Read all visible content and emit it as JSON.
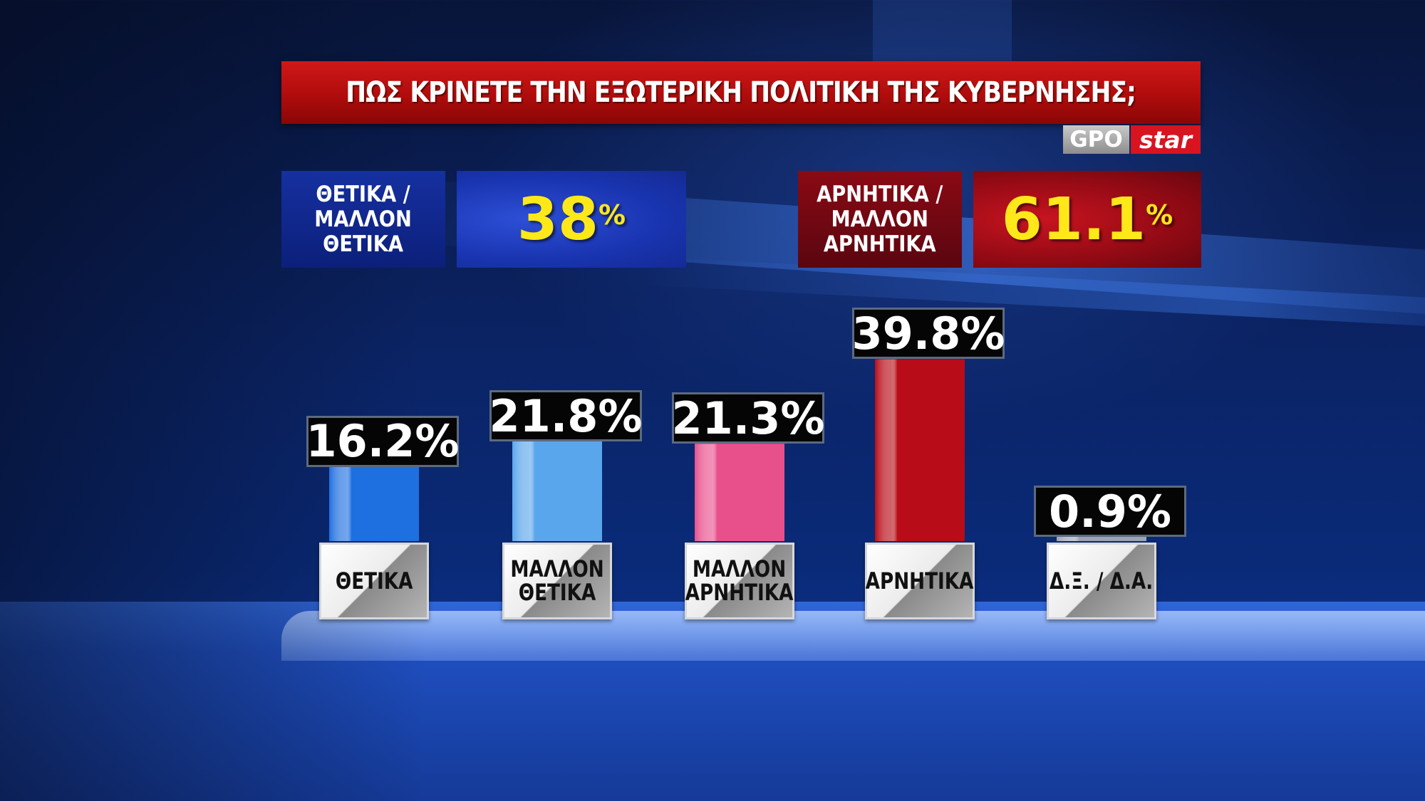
{
  "title": "ΠΩΣ ΚΡΙΝΕΤΕ ΤΗΝ ΕΞΩΤΕΡΙΚΗ ΠΟΛΙΤΙΚΗ ΤΗΣ ΚΥΒΕΡΝΗΣΗΣ;",
  "logo": {
    "gpo": "GPO",
    "star": "star"
  },
  "summary": {
    "positive": {
      "label_line1": "ΘΕΤΙΚΑ /",
      "label_line2": "ΜΑΛΛΟΝ",
      "label_line3": "ΘΕΤΙΚΑ",
      "value": "38",
      "unit": "%"
    },
    "negative": {
      "label_line1": "ΑΡΝΗΤΙΚΑ /",
      "label_line2": "ΜΑΛΛΟΝ",
      "label_line3": "ΑΡΝΗΤΙΚΑ",
      "value": "61.1",
      "unit": "%"
    }
  },
  "colors": {
    "title_red": "#c01010",
    "value_yellow": "#ffe81a",
    "positive_blue": "#1934b0",
    "negative_red": "#920a14"
  },
  "chart_data": {
    "type": "bar",
    "title": "ΠΩΣ ΚΡΙΝΕΤΕ ΤΗΝ ΕΞΩΤΕΡΙΚΗ ΠΟΛΙΤΙΚΗ ΤΗΣ ΚΥΒΕΡΝΗΣΗΣ;",
    "categories": [
      [
        "ΘΕΤΙΚΑ"
      ],
      [
        "ΜΑΛΛΟΝ",
        "ΘΕΤΙΚΑ"
      ],
      [
        "ΜΑΛΛΟΝ",
        "ΑΡΝΗΤΙΚΑ"
      ],
      [
        "ΑΡΝΗΤΙΚΑ"
      ],
      [
        "Δ.Ξ. / Δ.Α."
      ]
    ],
    "values": [
      16.2,
      21.8,
      21.3,
      39.8,
      0.9
    ],
    "value_labels": [
      "16.2%",
      "21.8%",
      "21.3%",
      "39.8%",
      "0.9%"
    ],
    "bar_colors": [
      "#1e6fe0",
      "#5aa6ec",
      "#e8508c",
      "#b80c18",
      "#9aa4b4"
    ],
    "xlabel": "",
    "ylabel": "",
    "unit": "%"
  }
}
